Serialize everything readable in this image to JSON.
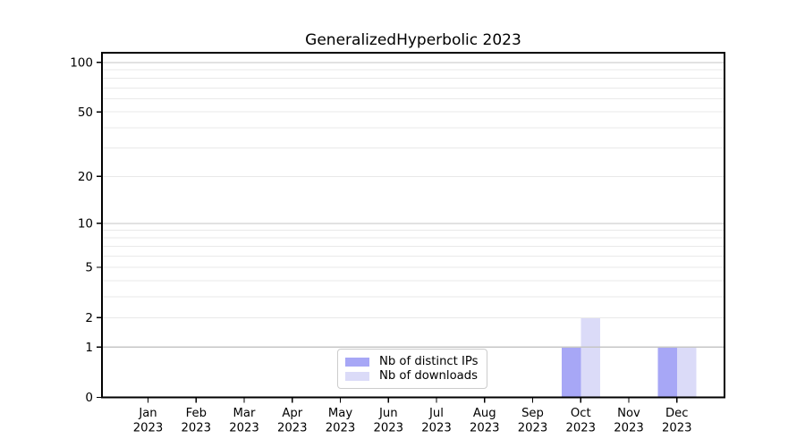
{
  "chart_data": {
    "type": "bar",
    "title": "GeneralizedHyperbolic 2023",
    "x_year": "2023",
    "x_months": [
      "Jan",
      "Feb",
      "Mar",
      "Apr",
      "May",
      "Jun",
      "Jul",
      "Aug",
      "Sep",
      "Oct",
      "Nov",
      "Dec"
    ],
    "categories": [
      "Jan 2023",
      "Feb 2023",
      "Mar 2023",
      "Apr 2023",
      "May 2023",
      "Jun 2023",
      "Jul 2023",
      "Aug 2023",
      "Sep 2023",
      "Oct 2023",
      "Nov 2023",
      "Dec 2023"
    ],
    "series": [
      {
        "name": "Nb of distinct IPs",
        "color": "#a7a7f6",
        "values": [
          0,
          0,
          0,
          0,
          0,
          0,
          0,
          0,
          0,
          1,
          0,
          1
        ]
      },
      {
        "name": "Nb of downloads",
        "color": "#dbdbf8",
        "values": [
          0,
          0,
          0,
          0,
          0,
          0,
          0,
          0,
          0,
          2,
          0,
          1
        ]
      }
    ],
    "y_scale": "log1p",
    "y_ticks": [
      0,
      1,
      2,
      5,
      10,
      20,
      50,
      100
    ],
    "y_tick_labels": [
      "0",
      "1",
      "2",
      "5",
      "10",
      "20",
      "50",
      "100"
    ],
    "major_gridlines": [
      1,
      10,
      100
    ],
    "minor_gridlines": [
      2,
      3,
      4,
      5,
      6,
      7,
      8,
      9,
      20,
      30,
      40,
      50,
      60,
      70,
      80,
      90
    ],
    "ylim": [
      0,
      115
    ],
    "grid": true,
    "legend_position": "lower center",
    "colors": {
      "bar_distinct_ips": "#a7a7f6",
      "bar_downloads": "#dbdbf8",
      "major_grid": "#c6c6c6",
      "minor_grid": "#e9e9e9",
      "axis": "#000000",
      "text": "#000000",
      "legend_border": "#cccccc",
      "background": "#ffffff"
    }
  }
}
